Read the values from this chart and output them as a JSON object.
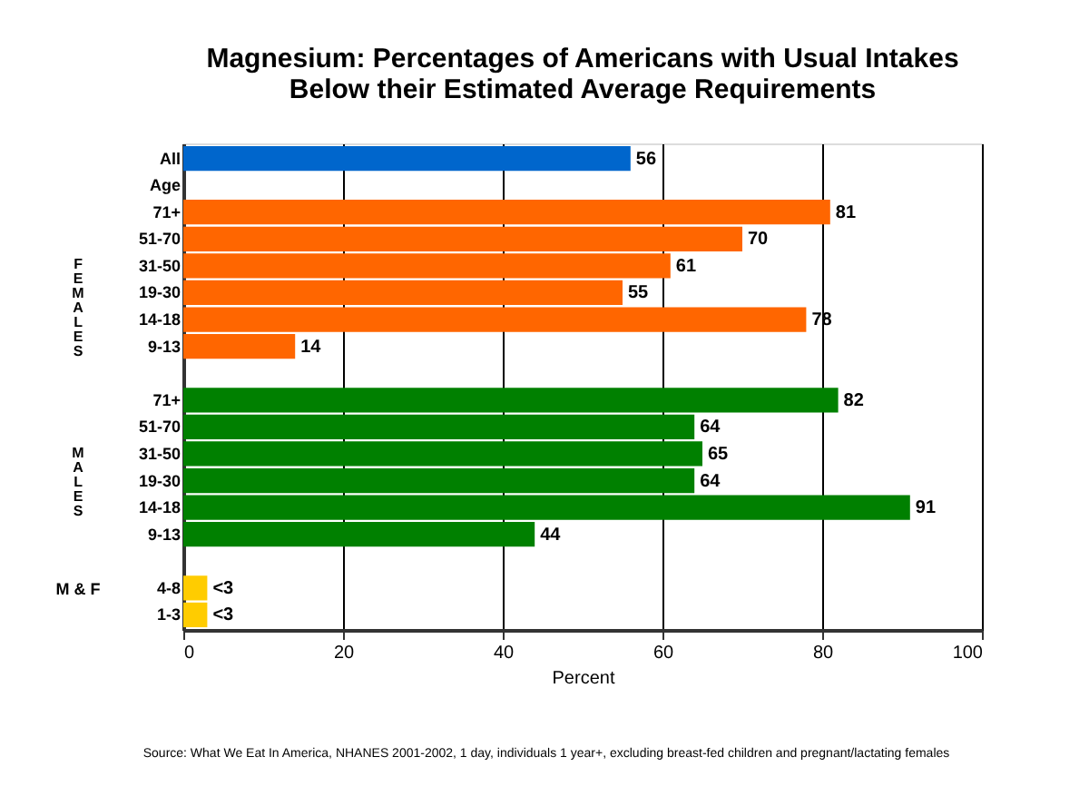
{
  "chart_data": {
    "type": "bar",
    "orientation": "horizontal",
    "title": [
      "Magnesium:  Percentages of Americans with Usual Intakes",
      "Below their Estimated Average Requirements"
    ],
    "xlabel": "Percent",
    "categories": [
      "All",
      "Age",
      "71+",
      "51-70",
      "31-50",
      "19-30",
      "14-18",
      "9-13",
      null,
      "71+",
      "51-70",
      "31-50",
      "19-30",
      "14-18",
      "9-13",
      null,
      "4-8",
      "1-3"
    ],
    "values": [
      56,
      null,
      81,
      70,
      61,
      55,
      78,
      14,
      null,
      82,
      64,
      65,
      64,
      91,
      44,
      null,
      3,
      3
    ],
    "colors": [
      "#0066cc",
      null,
      "#ff6600",
      "#ff6600",
      "#ff6600",
      "#ff6600",
      "#ff6600",
      "#ff6600",
      null,
      "#008000",
      "#008000",
      "#008000",
      "#008000",
      "#008000",
      "#008000",
      null,
      "#ffcc00",
      "#ffcc00"
    ],
    "value_labels": [
      "56",
      null,
      "81",
      "70",
      "61",
      "55",
      "78",
      "14",
      null,
      "82",
      "64",
      "65",
      "64",
      "91",
      "44",
      null,
      "<3",
      "<3"
    ],
    "xlim": [
      0,
      100
    ],
    "xticks": [
      0,
      20,
      40,
      60,
      80,
      100
    ],
    "grid": "x",
    "annotations": [
      "FEMALES",
      "MALES",
      "M & F",
      "Source:  What We Eat In America, NHANES 2001-2002, 1 day, individuals 1 year+, excluding breast-fed children and pregnant/lactating females"
    ]
  }
}
